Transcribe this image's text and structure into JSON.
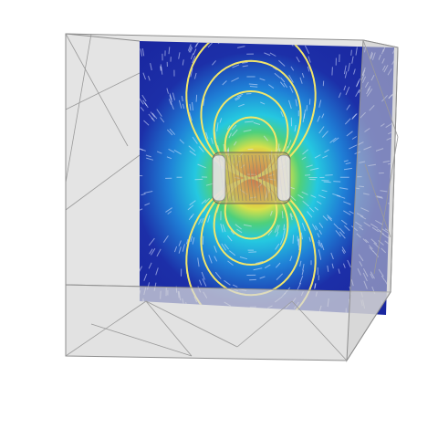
{
  "scene": {
    "description_free": true,
    "colors": {
      "background": "#ffffff",
      "box_fill": "#d8d8d8",
      "box_edge": "#8a8a8a",
      "slice_blue": "#1c2fa8",
      "field_lines": "#f2e66a",
      "streaks": "#dfe6ff",
      "coil": "#9a8f6a"
    },
    "colormap": [
      "#1c2fa8",
      "#1f7fd6",
      "#25c8e0",
      "#4fd07a",
      "#d8e04a",
      "#f3a33a",
      "#e23b2e"
    ]
  }
}
